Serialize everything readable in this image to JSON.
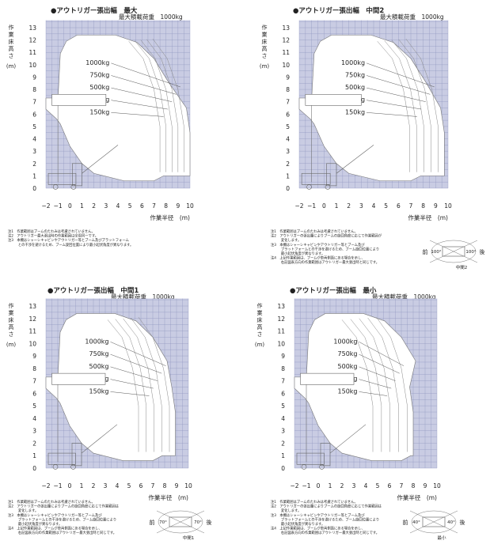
{
  "panels": [
    {
      "id": "max",
      "title": "●アウトリガー張出幅　最大",
      "subtitle": "最大積載荷重　1000kg",
      "y_axis_label": [
        "作",
        "業",
        "床",
        "高",
        "さ"
      ],
      "y_axis_unit": "(m)",
      "y_ticks": [
        "0",
        "1",
        "2",
        "3",
        "4",
        "5",
        "6",
        "7",
        "8",
        "9",
        "10",
        "11",
        "12",
        "13"
      ],
      "x_ticks": [
        "−2",
        "−1",
        "0",
        "1",
        "2",
        "3",
        "4",
        "5",
        "6",
        "7",
        "8",
        "9",
        "10"
      ],
      "x_axis_label": "作業半径　(m)",
      "load_labels": [
        "1000kg",
        "750kg",
        "500kg",
        "250kg",
        "150kg"
      ],
      "notes": [
        "注1　作業範囲はブームのたわみは考慮されていません。",
        "注2　アウトリガー最大張出時の作業範囲は全周同一です。",
        "注3　本機はシャーシキャビンやアウトリガー等とブーム及びプラットフォーム",
        "　　　との干渉を避けるため、ブーム旋回位置により最小起伏角度が異なります。"
      ],
      "has_rotation_diagram": false,
      "rotation": null
    },
    {
      "id": "mid2",
      "title": "●アウトリガー張出幅　中間2",
      "subtitle": "最大積載荷重　1000kg",
      "y_axis_label": [
        "作",
        "業",
        "床",
        "高",
        "さ"
      ],
      "y_axis_unit": "(m)",
      "y_ticks": [
        "0",
        "1",
        "2",
        "3",
        "4",
        "5",
        "6",
        "7",
        "8",
        "9",
        "10",
        "11",
        "12",
        "13"
      ],
      "x_ticks": [
        "−2",
        "−1",
        "0",
        "1",
        "2",
        "3",
        "4",
        "5",
        "6",
        "7",
        "8",
        "9",
        "10"
      ],
      "x_axis_label": "作業半径　(m)",
      "load_labels": [
        "1000kg",
        "750kg",
        "500kg",
        "250kg",
        "150kg"
      ],
      "notes": [
        "注1　作業範囲はブームのたわみは考慮されていません。",
        "注2　アウトリガーの張出量によりブームの旋回角度に応じて作業範囲が",
        "　　　変化します。",
        "注3　本機はシャーシキャビンやアウトリガー等とブーム及び",
        "　　　プラットフォームとの干渉を避けるため、ブーム旋回位置により",
        "　　　最小起伏角度が異なります。",
        "注4　上記作業範囲は、ブームが車両側面にある場合を示し、",
        "　　　右記図表方向の作業範囲はアウトリガー最大張出時と同じです。"
      ],
      "has_rotation_diagram": true,
      "rotation": {
        "front": "前",
        "rear": "後",
        "caption": "中間2",
        "angle_left": "100°",
        "angle_right": "100°"
      }
    },
    {
      "id": "mid1",
      "title": "●アウトリガー張出幅　中間1",
      "subtitle": "最大積載荷重　1000kg",
      "y_axis_label": [
        "作",
        "業",
        "床",
        "高",
        "さ"
      ],
      "y_axis_unit": "(m)",
      "y_ticks": [
        "0",
        "1",
        "2",
        "3",
        "4",
        "5",
        "6",
        "7",
        "8",
        "9",
        "10",
        "11",
        "12",
        "13"
      ],
      "x_ticks": [
        "−2",
        "−1",
        "0",
        "1",
        "2",
        "3",
        "4",
        "5",
        "6",
        "7",
        "8",
        "9",
        "10"
      ],
      "x_axis_label": "作業半径　(m)",
      "load_labels": [
        "1000kg",
        "750kg",
        "500kg",
        "250kg",
        "150kg"
      ],
      "notes": [
        "注1　作業範囲はブームのたわみは考慮されていません。",
        "注2　アウトリガーの張出量によりブームの旋回角度に応じて作業範囲は",
        "　　　変化します。",
        "注3　本機はシャーシキャビンやアウトリガー等とブーム及び",
        "　　　プラットフォームとの干渉を避けるため、ブーム旋回位置により",
        "　　　最小起伏角度が異なります。",
        "注4　上記作業範囲は、ブームが車両側面にある場合を示し、",
        "　　　右記図表方向の作業範囲はアウトリガー最大張出時と同じです。"
      ],
      "has_rotation_diagram": true,
      "rotation": {
        "front": "前",
        "rear": "後",
        "caption": "中間1",
        "angle_left": "70°",
        "angle_right": "70°"
      }
    },
    {
      "id": "min",
      "title": "●アウトリガー張出幅　最小",
      "subtitle": "最大積載荷重　1000kg",
      "y_axis_label": [
        "作",
        "業",
        "床",
        "高",
        "さ"
      ],
      "y_axis_unit": "(m)",
      "y_ticks": [
        "0",
        "1",
        "2",
        "3",
        "4",
        "5",
        "6",
        "7",
        "8",
        "9",
        "10",
        "11",
        "12",
        "13"
      ],
      "x_ticks": [
        "−2",
        "−1",
        "0",
        "1",
        "2",
        "3",
        "4",
        "5",
        "6",
        "7",
        "8",
        "9",
        "10"
      ],
      "x_axis_label": "作業半径　(m)",
      "load_labels": [
        "1000kg",
        "750kg",
        "500kg",
        "250kg",
        "150kg"
      ],
      "notes": [
        "注1　作業範囲はブームのたわみは考慮されていません。",
        "注2　アウトリガーの張出量によりブームの旋回角度に応じて作業範囲は",
        "　　　変化します。",
        "注3　本機はシャーシキャビンやアウトリガー等とブーム及び",
        "　　　プラットフォームとの干渉を避けるため、ブーム旋回位置により",
        "　　　最小起伏角度が異なります。",
        "注4　上記作業範囲は、ブームが車両側面にある場合を示し、",
        "　　　右記図表方向の作業範囲はアウトリガー最大張出時と同じです。"
      ],
      "has_rotation_diagram": true,
      "rotation": {
        "front": "前",
        "rear": "後",
        "caption": "最小",
        "angle_left": "40°",
        "angle_right": "40°"
      }
    }
  ],
  "colors": {
    "grid_bg": "#c9cce3",
    "grid_line": "#8d93bd",
    "envelope": "#ffffff",
    "text": "#222222"
  }
}
